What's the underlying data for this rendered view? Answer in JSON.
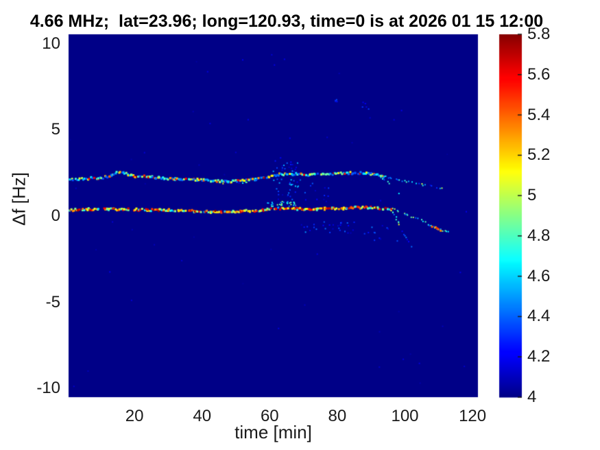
{
  "chart_data": {
    "type": "heatmap",
    "title": "4.66 MHz;  lat=23.96; long=120.93, time=0 is at 2026 01 15 12:00",
    "xlabel": "time [min]",
    "ylabel": "Δf [Hz]",
    "xlim": [
      0.5,
      121.6
    ],
    "ylim": [
      -10.5,
      10.55
    ],
    "xticks": [
      20,
      40,
      60,
      80,
      100,
      120
    ],
    "yticks": [
      10,
      5,
      0,
      -5,
      -10
    ],
    "grid": false,
    "colormap": "jet",
    "background_value": 4.0,
    "colors": {
      "background_min": "#000087",
      "tick_label": "#1a1a1a",
      "title": "#000000",
      "jet_anchors": [
        "#000087",
        "#0000ff",
        "#00ffff",
        "#80ff80",
        "#ffff00",
        "#ff0000",
        "#870000"
      ]
    },
    "colorbar": {
      "position": "right",
      "min": 4,
      "max": 5.8,
      "ticks": [
        5.8,
        5.6,
        5.4,
        5.2,
        5,
        4.8,
        4.6,
        4.4,
        4.2,
        4
      ]
    },
    "traces": [
      {
        "name": "upper-doppler-trace",
        "points": [
          [
            0.7,
            2.1
          ],
          [
            4,
            2.15
          ],
          [
            7,
            2.2
          ],
          [
            10,
            2.2
          ],
          [
            13,
            2.35
          ],
          [
            15,
            2.55
          ],
          [
            16,
            2.6
          ],
          [
            18,
            2.45
          ],
          [
            20,
            2.3
          ],
          [
            24,
            2.3
          ],
          [
            28,
            2.2
          ],
          [
            32,
            2.15
          ],
          [
            36,
            2.15
          ],
          [
            40,
            2.1
          ],
          [
            44,
            2.05
          ],
          [
            48,
            2.0
          ],
          [
            52,
            2.05
          ],
          [
            56,
            2.15
          ],
          [
            60,
            2.3
          ],
          [
            63,
            2.42
          ],
          [
            67,
            2.45
          ],
          [
            71,
            2.4
          ],
          [
            75,
            2.45
          ],
          [
            79,
            2.45
          ],
          [
            83,
            2.5
          ],
          [
            87,
            2.5
          ],
          [
            90,
            2.45
          ],
          [
            94,
            2.3
          ]
        ],
        "step": 0.35,
        "density": 0.84,
        "size": 3,
        "jitter": 1.6,
        "intensity": [
          4.35,
          5.75
        ],
        "bias": 1.6
      },
      {
        "name": "upper-trace-companion",
        "points": [
          [
            44,
            1.9
          ],
          [
            50,
            1.95
          ],
          [
            57,
            2.0
          ]
        ],
        "step": 0.55,
        "density": 0.38,
        "size": 2,
        "jitter": 1.4,
        "intensity": [
          4.2,
          5.1
        ],
        "bias": 1.4
      },
      {
        "name": "upper-trace-tail",
        "points": [
          [
            94,
            2.3
          ],
          [
            97,
            2.15
          ],
          [
            100,
            2.02
          ],
          [
            103,
            1.92
          ],
          [
            106,
            1.8
          ],
          [
            109,
            1.68
          ],
          [
            111.5,
            1.58
          ]
        ],
        "step": 0.5,
        "density": 0.5,
        "size": 2,
        "jitter": 1.1,
        "intensity": [
          4.3,
          5.05
        ],
        "bias": 1.3
      },
      {
        "name": "upper-branch-steep",
        "points": [
          [
            93,
            2.22
          ],
          [
            95,
            1.98
          ],
          [
            97,
            1.62
          ],
          [
            98.6,
            1.3
          ]
        ],
        "step": 0.45,
        "density": 0.5,
        "size": 2,
        "jitter": 1.0,
        "intensity": [
          4.3,
          4.95
        ],
        "bias": 1.2
      },
      {
        "name": "lower-doppler-trace",
        "points": [
          [
            0.7,
            0.35
          ],
          [
            6,
            0.4
          ],
          [
            12,
            0.4
          ],
          [
            18,
            0.4
          ],
          [
            24,
            0.35
          ],
          [
            30,
            0.35
          ],
          [
            36,
            0.3
          ],
          [
            42,
            0.25
          ],
          [
            48,
            0.25
          ],
          [
            54,
            0.3
          ],
          [
            58,
            0.35
          ],
          [
            62,
            0.45
          ],
          [
            66,
            0.45
          ],
          [
            70,
            0.4
          ],
          [
            74,
            0.4
          ],
          [
            78,
            0.45
          ],
          [
            82,
            0.45
          ],
          [
            86,
            0.5
          ],
          [
            90,
            0.5
          ],
          [
            93,
            0.45
          ],
          [
            96,
            0.4
          ]
        ],
        "step": 0.35,
        "density": 0.86,
        "size": 3,
        "jitter": 1.6,
        "intensity": [
          4.45,
          5.8
        ],
        "bias": 0.7
      },
      {
        "name": "lower-branch-steep",
        "points": [
          [
            96,
            0.35
          ],
          [
            97,
            0.05
          ],
          [
            98,
            -0.4
          ],
          [
            98.8,
            -0.72
          ]
        ],
        "step": 0.3,
        "density": 0.6,
        "size": 2,
        "jitter": 1.0,
        "intensity": [
          4.4,
          5.25
        ],
        "bias": 1.0
      },
      {
        "name": "lower-branch-steep-faint",
        "points": [
          [
            98.8,
            -0.72
          ],
          [
            100,
            -1.15
          ],
          [
            101.2,
            -1.55
          ],
          [
            102,
            -1.78
          ]
        ],
        "step": 0.35,
        "density": 0.45,
        "size": 2,
        "jitter": 1.0,
        "intensity": [
          4.1,
          4.45
        ],
        "bias": 1.0
      },
      {
        "name": "lower-trace-tail",
        "points": [
          [
            96,
            0.45
          ],
          [
            98,
            0.28
          ],
          [
            100,
            0.1
          ],
          [
            102,
            -0.05
          ],
          [
            104,
            -0.15
          ],
          [
            106,
            -0.35
          ],
          [
            108,
            -0.6
          ],
          [
            110,
            -0.75
          ],
          [
            112,
            -0.88
          ],
          [
            113.5,
            -0.97
          ]
        ],
        "step": 0.45,
        "density": 0.55,
        "size": 2,
        "jitter": 1.1,
        "intensity": [
          4.35,
          5.0
        ],
        "bias": 1.2
      },
      {
        "name": "lower-tail-red-end",
        "points": [
          [
            107.5,
            -0.55
          ],
          [
            109.5,
            -0.7
          ],
          [
            111.5,
            -0.85
          ]
        ],
        "step": 0.55,
        "density": 0.7,
        "size": 3,
        "jitter": 1.6,
        "intensity": [
          5.15,
          5.8
        ],
        "bias": 0.9
      }
    ],
    "clusters": [
      {
        "name": "mid-scatter-above-upper",
        "x": [
          61,
          68.5
        ],
        "y": [
          2.55,
          3.4
        ],
        "count": 20,
        "size": 2,
        "intensity": [
          4.08,
          4.55
        ]
      },
      {
        "name": "mid-scatter-between",
        "x": [
          61,
          70
        ],
        "y": [
          0.95,
          2.15
        ],
        "count": 30,
        "size": 2,
        "intensity": [
          4.08,
          4.6
        ]
      },
      {
        "name": "lower-companion-cluster",
        "x": [
          58,
          68
        ],
        "y": [
          0.55,
          0.85
        ],
        "count": 30,
        "size": 2,
        "intensity": [
          4.2,
          5.0
        ]
      },
      {
        "name": "between-scatter-2",
        "x": [
          70,
          78
        ],
        "y": [
          0.85,
          2.0
        ],
        "count": 12,
        "size": 2,
        "intensity": [
          4.05,
          4.4
        ]
      },
      {
        "name": "below-lower-scatter",
        "x": [
          69,
          86
        ],
        "y": [
          -1.0,
          -0.3
        ],
        "count": 28,
        "size": 2,
        "intensity": [
          4.08,
          4.5
        ]
      },
      {
        "name": "below-split-scatter",
        "x": [
          88,
          98
        ],
        "y": [
          -1.5,
          -0.5
        ],
        "count": 12,
        "size": 2,
        "intensity": [
          4.08,
          4.45
        ]
      },
      {
        "name": "high-specks-1",
        "x": [
          78,
          80.5
        ],
        "y": [
          6.4,
          6.8
        ],
        "count": 5,
        "size": 2,
        "intensity": [
          4.12,
          4.4
        ]
      },
      {
        "name": "high-specks-2",
        "x": [
          87,
          89.5
        ],
        "y": [
          6.2,
          6.6
        ],
        "count": 5,
        "size": 2,
        "intensity": [
          4.12,
          4.4
        ]
      },
      {
        "name": "background-noise",
        "x": [
          1,
          121
        ],
        "y": [
          -10,
          10.2
        ],
        "count": 55,
        "size": 2,
        "intensity": [
          4.03,
          4.18
        ]
      }
    ]
  }
}
